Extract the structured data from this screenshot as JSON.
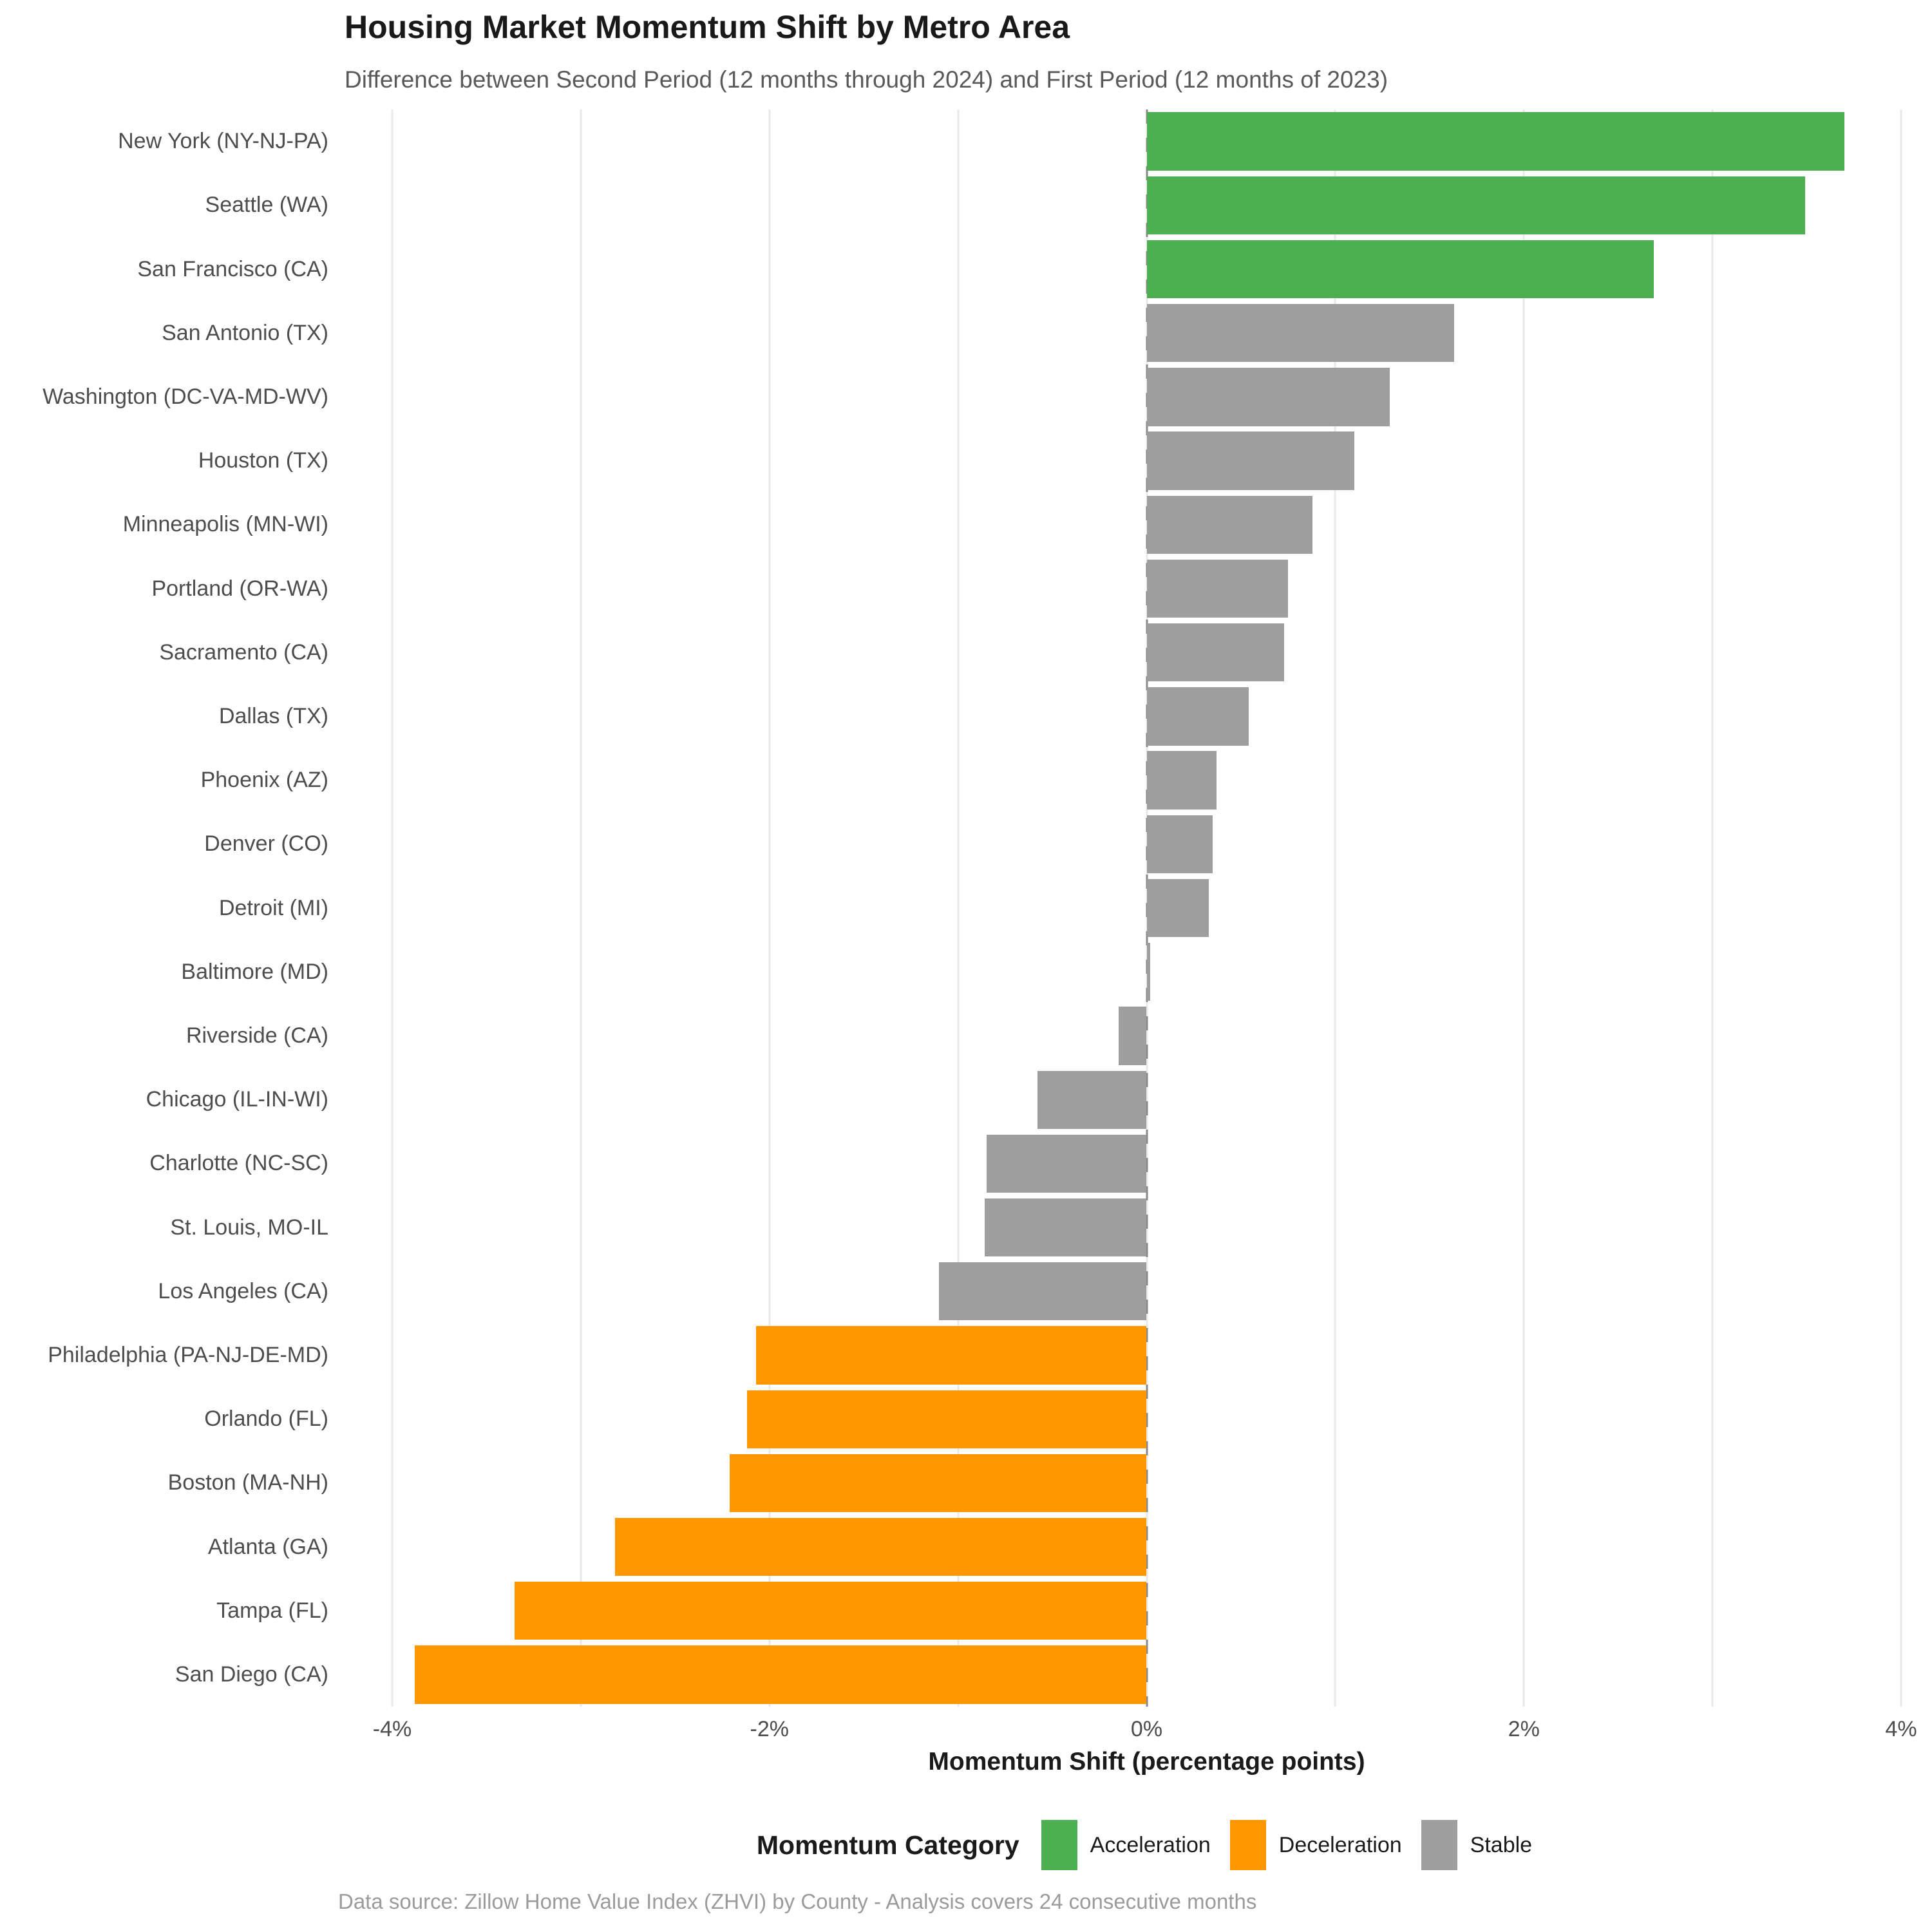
{
  "header": {
    "title": "Housing Market Momentum Shift by Metro Area",
    "subtitle": "Difference between Second Period (12 months through 2024) and First Period (12 months of 2023)"
  },
  "footer": {
    "caption": "Data source: Zillow Home Value Index (ZHVI) by County - Analysis covers 24 consecutive months"
  },
  "legend": {
    "title": "Momentum Category",
    "items": [
      {
        "label": "Acceleration",
        "color": "#4CAF50"
      },
      {
        "label": "Deceleration",
        "color": "#FF9800"
      },
      {
        "label": "Stable",
        "color": "#9E9E9E"
      }
    ]
  },
  "chart_data": {
    "type": "bar",
    "orientation": "horizontal",
    "title": "Housing Market Momentum Shift by Metro Area",
    "subtitle": "Difference between Second Period (12 months through 2024) and First Period (12 months of 2023)",
    "xlabel": "Momentum Shift (percentage points)",
    "ylabel": "",
    "xlim": [
      -4,
      4
    ],
    "grid": "vertical, every 1 percentage point, light gray",
    "zero_line": {
      "value": 0,
      "style": "dashed",
      "color": "#8a8a8a"
    },
    "legend_position": "bottom",
    "category_colors": {
      "Acceleration": "#4CAF50",
      "Deceleration": "#FF9800",
      "Stable": "#9E9E9E"
    },
    "x_ticks": [
      {
        "label": "-4%",
        "value": -4
      },
      {
        "label": "-2%",
        "value": -2
      },
      {
        "label": "0%",
        "value": 0
      },
      {
        "label": "2%",
        "value": 2
      },
      {
        "label": "4%",
        "value": 4
      }
    ],
    "gridline_values": [
      -4,
      -3,
      -2,
      -1,
      0,
      1,
      2,
      3,
      4
    ],
    "categories": [
      "New York (NY-NJ-PA)",
      "Seattle (WA)",
      "San Francisco (CA)",
      "San Antonio (TX)",
      "Washington (DC-VA-MD-WV)",
      "Houston (TX)",
      "Minneapolis (MN-WI)",
      "Portland (OR-WA)",
      "Sacramento (CA)",
      "Dallas (TX)",
      "Phoenix (AZ)",
      "Denver (CO)",
      "Detroit (MI)",
      "Baltimore (MD)",
      "Riverside (CA)",
      "Chicago (IL-IN-WI)",
      "Charlotte (NC-SC)",
      "St. Louis, MO-IL",
      "Los Angeles (CA)",
      "Philadelphia (PA-NJ-DE-MD)",
      "Orlando (FL)",
      "Boston (MA-NH)",
      "Atlanta (GA)",
      "Tampa (FL)",
      "San Diego (CA)"
    ],
    "values": [
      3.7,
      3.49,
      2.69,
      1.63,
      1.29,
      1.1,
      0.88,
      0.75,
      0.73,
      0.54,
      0.37,
      0.35,
      0.33,
      0.02,
      -0.15,
      -0.58,
      -0.85,
      -0.86,
      -1.1,
      -2.07,
      -2.12,
      -2.21,
      -2.82,
      -3.35,
      -3.88
    ],
    "bar_categories": [
      "Acceleration",
      "Acceleration",
      "Acceleration",
      "Stable",
      "Stable",
      "Stable",
      "Stable",
      "Stable",
      "Stable",
      "Stable",
      "Stable",
      "Stable",
      "Stable",
      "Stable",
      "Stable",
      "Stable",
      "Stable",
      "Stable",
      "Stable",
      "Deceleration",
      "Deceleration",
      "Deceleration",
      "Deceleration",
      "Deceleration",
      "Deceleration"
    ]
  }
}
